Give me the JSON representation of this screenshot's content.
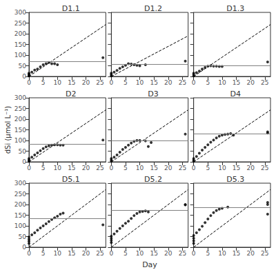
{
  "chart_data": [
    {
      "type": "scatter",
      "title": "D1.1",
      "xlim": [
        0,
        27
      ],
      "ylim": [
        0,
        300
      ],
      "xticks": [
        0,
        5,
        10,
        15,
        20,
        25
      ],
      "yticks": [
        0,
        50,
        100,
        150,
        200,
        250,
        300
      ],
      "grid": false,
      "series": [
        {
          "type": "scatter",
          "color": "black",
          "marker": "circle",
          "x": [
            0,
            0,
            0,
            0,
            1,
            2,
            3,
            4,
            5,
            6,
            7,
            8,
            9,
            10,
            26
          ],
          "values": [
            2,
            5,
            10,
            15,
            20,
            30,
            35,
            45,
            55,
            60,
            65,
            60,
            60,
            55,
            88
          ]
        },
        {
          "type": "line",
          "color": "black",
          "line_style": "dashed",
          "x": [
            0,
            27
          ],
          "values": [
            0,
            243
          ]
        },
        {
          "type": "hline",
          "color": "gray",
          "values": [
            70
          ]
        }
      ]
    },
    {
      "type": "scatter",
      "title": "D1.2",
      "xlim": [
        0,
        27
      ],
      "ylim": [
        0,
        300
      ],
      "xticks": [
        0,
        5,
        10,
        15,
        20,
        25
      ],
      "yticks": [
        0,
        50,
        100,
        150,
        200,
        250,
        300
      ],
      "grid": false,
      "tick_labels": "x",
      "series": [
        {
          "type": "scatter",
          "color": "black",
          "marker": "circle",
          "x": [
            0,
            0,
            0,
            1,
            2,
            3,
            4,
            5,
            6,
            7,
            8,
            9,
            10,
            12,
            26
          ],
          "values": [
            2,
            8,
            15,
            20,
            28,
            38,
            45,
            52,
            60,
            58,
            55,
            52,
            50,
            55,
            72
          ]
        },
        {
          "type": "line",
          "color": "black",
          "line_style": "dashed",
          "x": [
            0,
            27
          ],
          "values": [
            0,
            190
          ]
        },
        {
          "type": "hline",
          "color": "gray",
          "values": [
            58
          ]
        }
      ]
    },
    {
      "type": "scatter",
      "title": "D1.3",
      "xlim": [
        0,
        27
      ],
      "ylim": [
        0,
        300
      ],
      "xticks": [
        0,
        5,
        10,
        15,
        20,
        25
      ],
      "yticks": [
        0,
        50,
        100,
        150,
        200,
        250,
        300
      ],
      "grid": false,
      "tick_labels": "x",
      "series": [
        {
          "type": "scatter",
          "color": "black",
          "marker": "circle",
          "x": [
            0,
            0,
            0,
            1,
            2,
            3,
            4,
            5,
            6,
            7,
            8,
            9,
            10,
            26
          ],
          "values": [
            2,
            8,
            15,
            18,
            25,
            35,
            42,
            48,
            50,
            48,
            48,
            47,
            47,
            68
          ]
        },
        {
          "type": "line",
          "color": "black",
          "line_style": "dashed",
          "x": [
            0,
            27
          ],
          "values": [
            0,
            243
          ]
        },
        {
          "type": "hline",
          "color": "gray",
          "values": [
            50
          ]
        }
      ]
    },
    {
      "type": "scatter",
      "title": "D2",
      "ylabel": "dSi (μmol L⁻¹)",
      "xlim": [
        0,
        27
      ],
      "ylim": [
        0,
        300
      ],
      "xticks": [
        0,
        5,
        10,
        15,
        20,
        25
      ],
      "yticks": [
        0,
        50,
        100,
        150,
        200,
        250,
        300
      ],
      "grid": false,
      "series": [
        {
          "type": "scatter",
          "color": "black",
          "marker": "circle",
          "x": [
            0,
            0,
            0,
            1,
            2,
            3,
            4,
            5,
            6,
            7,
            8,
            9,
            10,
            11,
            12,
            26
          ],
          "values": [
            2,
            8,
            15,
            22,
            32,
            42,
            52,
            62,
            70,
            75,
            78,
            80,
            80,
            78,
            78,
            102
          ]
        },
        {
          "type": "line",
          "color": "black",
          "line_style": "dashed",
          "x": [
            0,
            27
          ],
          "values": [
            0,
            243
          ]
        },
        {
          "type": "hline",
          "color": "gray",
          "values": [
            83
          ]
        }
      ]
    },
    {
      "type": "scatter",
      "title": "D3",
      "xlim": [
        0,
        27
      ],
      "ylim": [
        0,
        300
      ],
      "xticks": [
        0,
        5,
        10,
        15,
        20,
        25
      ],
      "yticks": [
        0,
        50,
        100,
        150,
        200,
        250,
        300
      ],
      "grid": false,
      "tick_labels": "x",
      "series": [
        {
          "type": "scatter",
          "color": "black",
          "marker": "circle",
          "x": [
            0,
            0,
            0,
            1,
            2,
            3,
            4,
            5,
            6,
            7,
            8,
            9,
            10,
            12,
            13,
            14,
            26
          ],
          "values": [
            2,
            8,
            15,
            22,
            32,
            45,
            58,
            68,
            78,
            88,
            96,
            100,
            100,
            98,
            72,
            90,
            130
          ]
        },
        {
          "type": "line",
          "color": "black",
          "line_style": "dashed",
          "x": [
            0,
            27
          ],
          "values": [
            0,
            243
          ]
        },
        {
          "type": "hline",
          "color": "gray",
          "values": [
            100
          ]
        }
      ]
    },
    {
      "type": "scatter",
      "title": "D4",
      "xlim": [
        0,
        27
      ],
      "ylim": [
        0,
        300
      ],
      "xticks": [
        0,
        5,
        10,
        15,
        20,
        25
      ],
      "yticks": [
        0,
        50,
        100,
        150,
        200,
        250,
        300
      ],
      "grid": false,
      "tick_labels": "x",
      "series": [
        {
          "type": "scatter",
          "color": "black",
          "marker": "circle",
          "x": [
            0,
            0,
            0,
            1,
            2,
            3,
            4,
            5,
            6,
            7,
            8,
            9,
            10,
            11,
            12,
            13,
            14,
            26,
            26
          ],
          "values": [
            2,
            8,
            15,
            25,
            40,
            55,
            68,
            80,
            92,
            102,
            112,
            120,
            125,
            128,
            130,
            132,
            125,
            140,
            135
          ]
        },
        {
          "type": "line",
          "color": "black",
          "line_style": "dashed",
          "x": [
            0,
            27
          ],
          "values": [
            0,
            243
          ]
        },
        {
          "type": "hline",
          "color": "gray",
          "values": [
            130
          ]
        }
      ]
    },
    {
      "type": "scatter",
      "title": "D5.1",
      "xlim": [
        0,
        27
      ],
      "ylim": [
        0,
        300
      ],
      "xticks": [
        0,
        5,
        10,
        15,
        20,
        25
      ],
      "yticks": [
        0,
        50,
        100,
        150,
        200,
        250,
        300
      ],
      "grid": false,
      "series": [
        {
          "type": "scatter",
          "color": "black",
          "marker": "circle",
          "x": [
            0,
            0,
            0,
            0,
            1,
            2,
            3,
            4,
            5,
            6,
            7,
            8,
            9,
            10,
            11,
            12,
            26
          ],
          "values": [
            18,
            28,
            38,
            48,
            58,
            68,
            80,
            90,
            100,
            110,
            120,
            130,
            138,
            145,
            155,
            160,
            105
          ]
        },
        {
          "type": "line",
          "color": "black",
          "line_style": "dashed",
          "x": [
            0,
            27
          ],
          "values": [
            0,
            270
          ]
        },
        {
          "type": "hline",
          "color": "gray",
          "values": [
            135
          ]
        }
      ]
    },
    {
      "type": "scatter",
      "title": "D5.2",
      "xlabel": "Day",
      "xlim": [
        0,
        27
      ],
      "ylim": [
        0,
        300
      ],
      "xticks": [
        0,
        5,
        10,
        15,
        20,
        25
      ],
      "yticks": [
        0,
        50,
        100,
        150,
        200,
        250,
        300
      ],
      "grid": false,
      "tick_labels": "x",
      "series": [
        {
          "type": "scatter",
          "color": "black",
          "marker": "circle",
          "x": [
            0,
            0,
            0,
            0,
            1,
            2,
            3,
            4,
            5,
            6,
            7,
            8,
            9,
            10,
            11,
            12,
            13,
            26,
            26
          ],
          "values": [
            22,
            32,
            42,
            52,
            62,
            75,
            88,
            100,
            112,
            122,
            135,
            148,
            158,
            165,
            168,
            170,
            165,
            198,
            200
          ]
        },
        {
          "type": "line",
          "color": "black",
          "line_style": "dashed",
          "x": [
            0,
            27
          ],
          "values": [
            0,
            270
          ]
        },
        {
          "type": "hline",
          "color": "gray",
          "values": [
            175
          ]
        }
      ]
    },
    {
      "type": "scatter",
      "title": "D5.3",
      "xlim": [
        0,
        27
      ],
      "ylim": [
        0,
        300
      ],
      "xticks": [
        0,
        5,
        10,
        15,
        20,
        25
      ],
      "yticks": [
        0,
        50,
        100,
        150,
        200,
        250,
        300
      ],
      "grid": false,
      "tick_labels": "x",
      "series": [
        {
          "type": "scatter",
          "color": "black",
          "marker": "circle",
          "x": [
            0,
            0,
            0,
            0,
            1,
            2,
            3,
            4,
            5,
            6,
            7,
            8,
            9,
            10,
            12,
            26,
            26,
            26
          ],
          "values": [
            18,
            30,
            42,
            55,
            68,
            82,
            98,
            115,
            132,
            148,
            162,
            172,
            178,
            182,
            188,
            155,
            200,
            210
          ]
        },
        {
          "type": "line",
          "color": "black",
          "line_style": "dashed",
          "x": [
            0,
            27
          ],
          "values": [
            0,
            270
          ]
        },
        {
          "type": "hline",
          "color": "gray",
          "values": [
            185
          ]
        }
      ]
    }
  ]
}
